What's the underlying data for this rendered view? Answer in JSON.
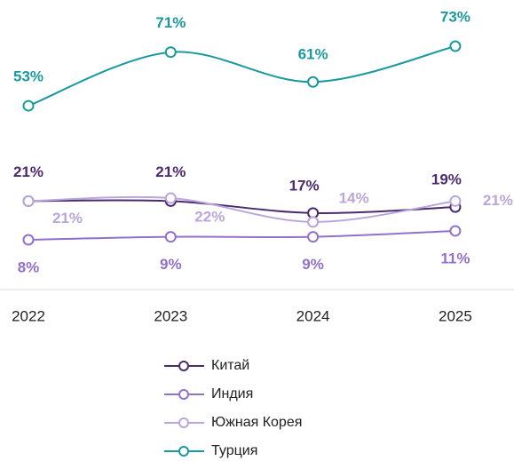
{
  "chart_data": {
    "type": "line",
    "categories": [
      "2022",
      "2023",
      "2024",
      "2025"
    ],
    "series": [
      {
        "name": "Китай",
        "color": "#4b2a6e",
        "values": [
          21,
          21,
          17,
          19
        ],
        "value_labels": [
          "21%",
          "21%",
          "17%",
          "19%"
        ]
      },
      {
        "name": "Индия",
        "color": "#9370cc",
        "values": [
          8,
          9,
          9,
          11
        ],
        "value_labels": [
          "8%",
          "9%",
          "9%",
          "11%"
        ]
      },
      {
        "name": "Южная Корея",
        "color": "#b9a6dd",
        "values": [
          21,
          22,
          14,
          21
        ],
        "value_labels": [
          "21%",
          "22%",
          "14%",
          "21%"
        ]
      },
      {
        "name": "Турция",
        "color": "#1a9aa0",
        "values": [
          53,
          71,
          61,
          73
        ],
        "value_labels": [
          "53%",
          "71%",
          "61%",
          "73%"
        ]
      }
    ],
    "legend": "bottom"
  }
}
